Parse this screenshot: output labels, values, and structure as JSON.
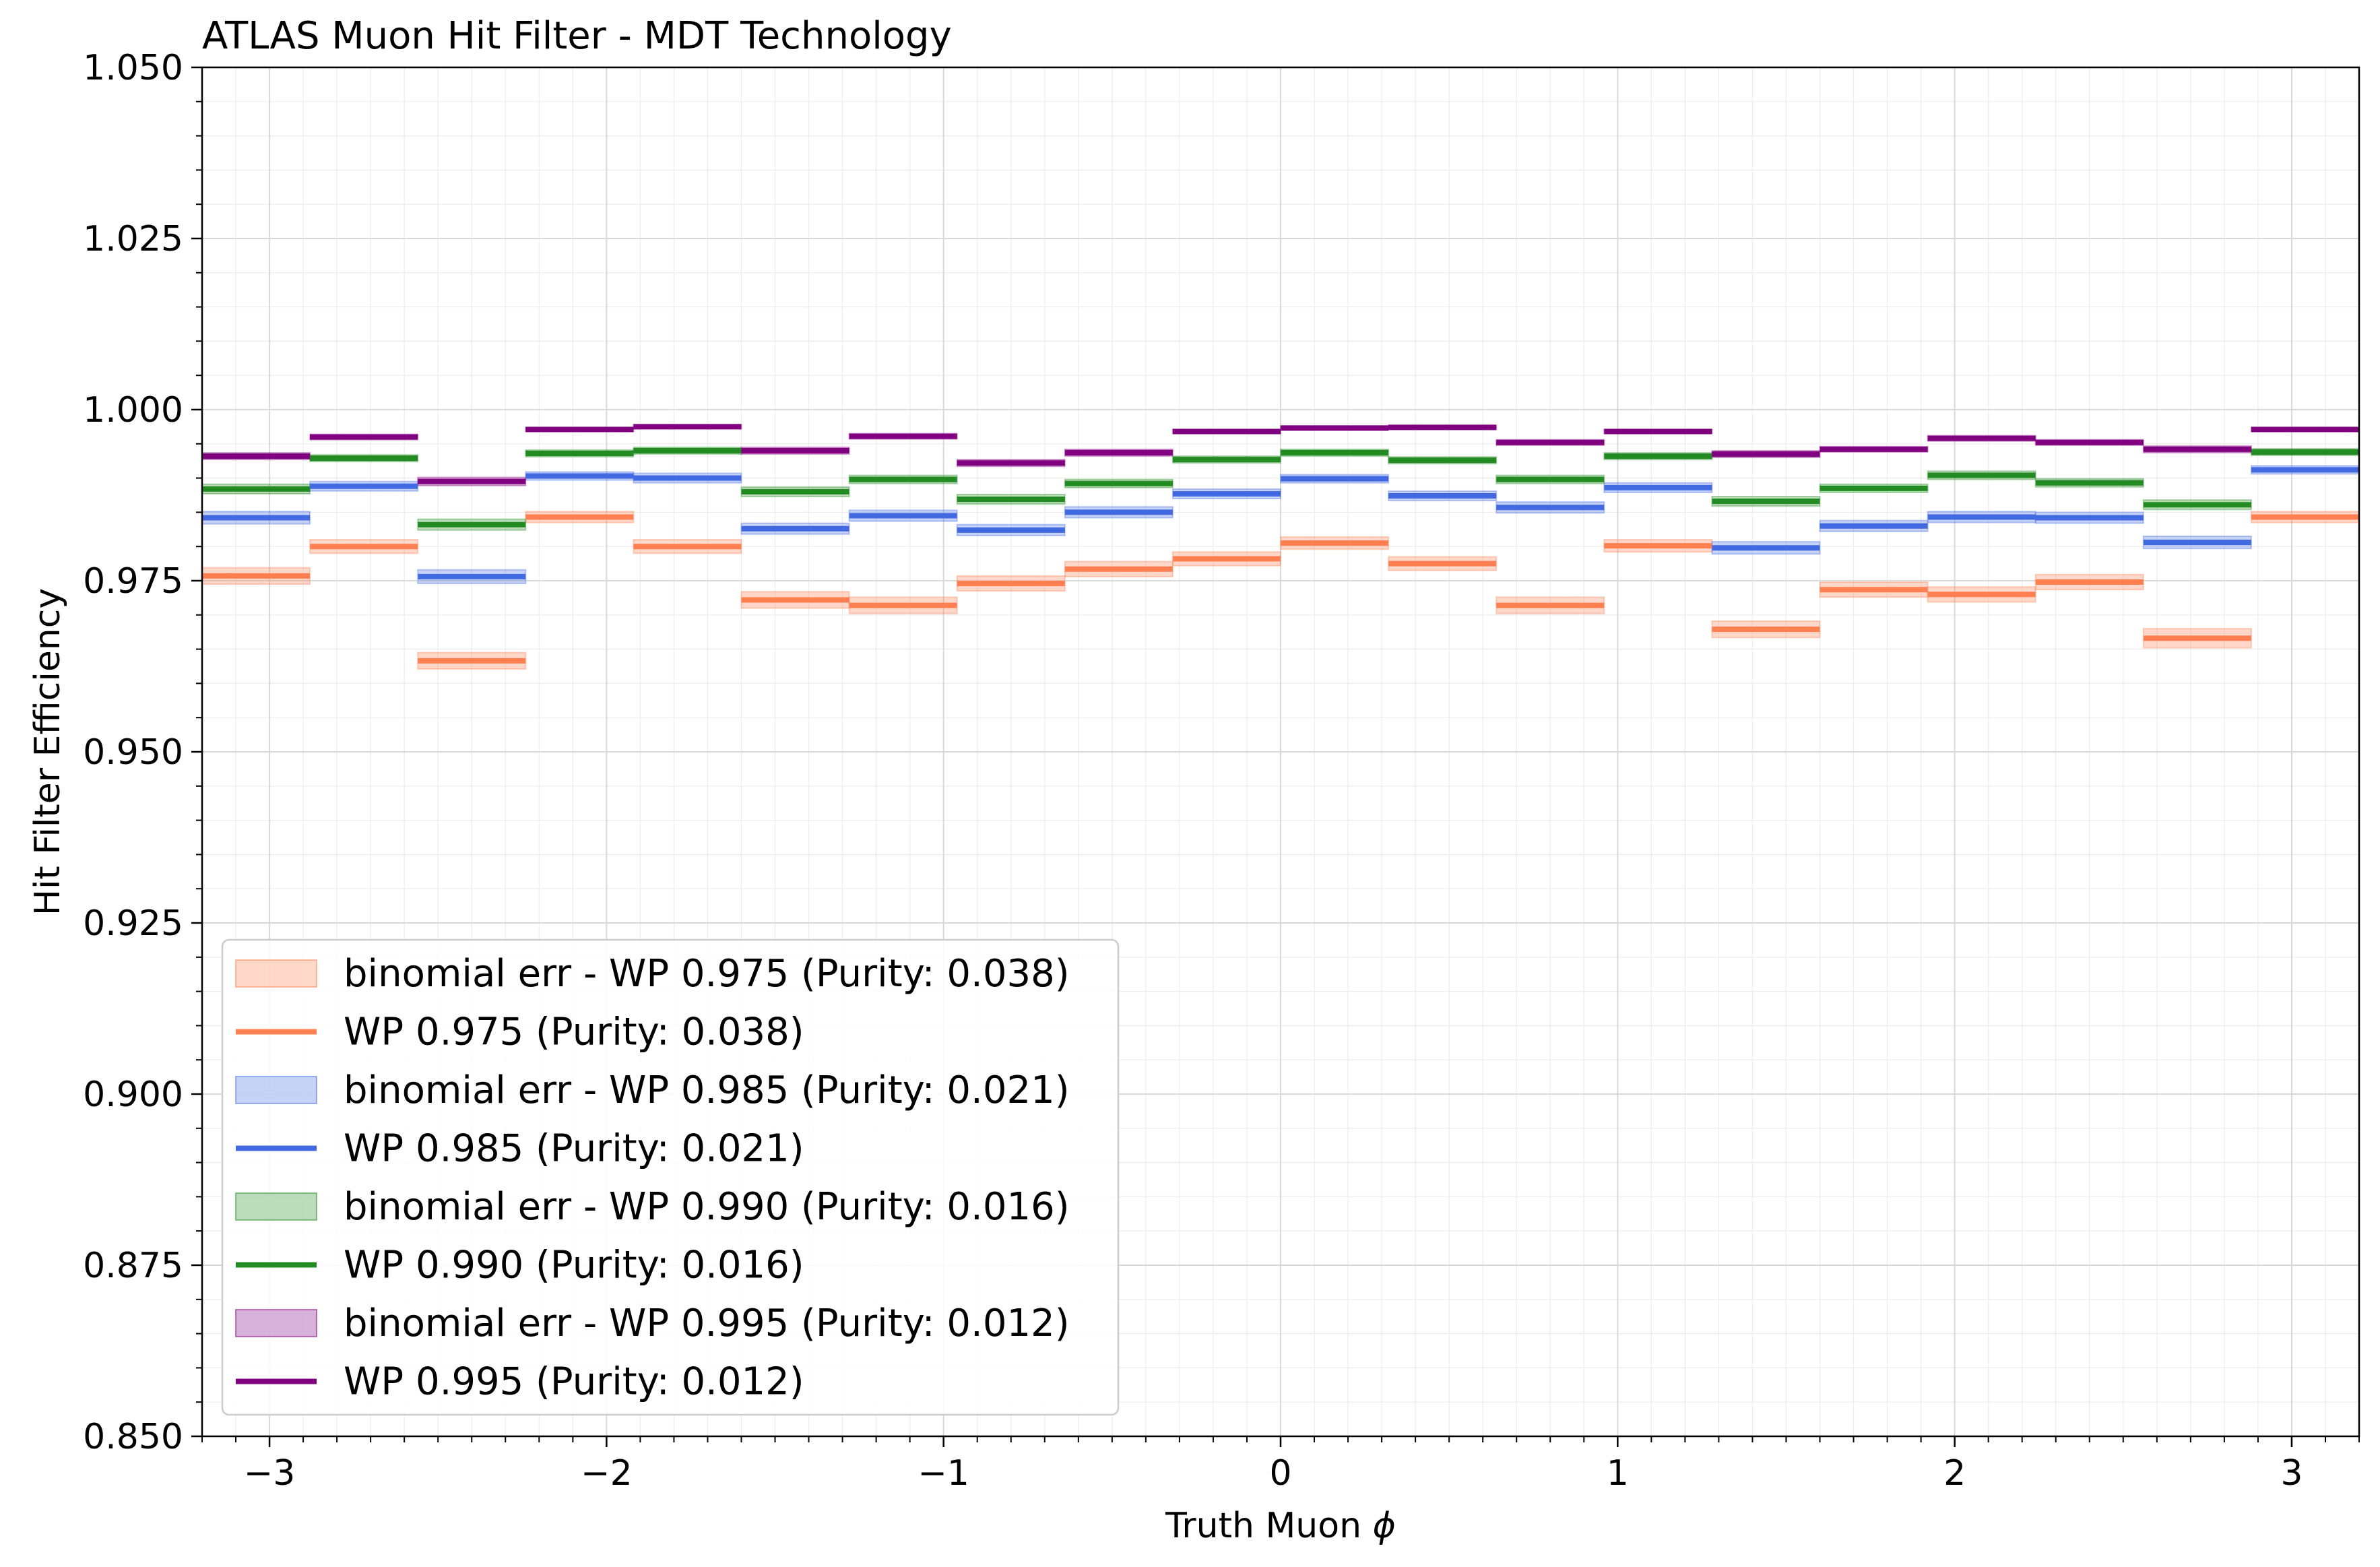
{
  "chart_data": {
    "type": "step",
    "title": "ATLAS Muon Hit Filter - MDT Technology",
    "xlabel": "Truth Muon",
    "xlabel_symbol": "ϕ",
    "ylabel": "Hit Filter Efficiency",
    "xlim": [
      -3.2,
      3.2
    ],
    "ylim": [
      0.85,
      1.05
    ],
    "xticks": [
      -3,
      -2,
      -1,
      0,
      1,
      2,
      3
    ],
    "xtick_labels": [
      "−3",
      "−2",
      "−1",
      "0",
      "1",
      "2",
      "3"
    ],
    "yticks": [
      0.85,
      0.875,
      0.9,
      0.925,
      0.95,
      0.975,
      1.0,
      1.025,
      1.05
    ],
    "ytick_labels": [
      "0.850",
      "0.875",
      "0.900",
      "0.925",
      "0.950",
      "0.975",
      "1.000",
      "1.025",
      "1.050"
    ],
    "grid": true,
    "legend_position": "lower-left",
    "bin_edges": [
      -3.2,
      -2.88,
      -2.56,
      -2.24,
      -1.92,
      -1.6,
      -1.28,
      -0.96,
      -0.64,
      -0.32,
      0.0,
      0.32,
      0.64,
      0.96,
      1.28,
      1.6,
      1.92,
      2.24,
      2.56,
      2.88,
      3.2
    ],
    "series": [
      {
        "name": "WP 0.975 (Purity: 0.038)",
        "band_name": "binomial err - WP 0.975 (Purity: 0.038)",
        "color": "#ff7f50",
        "values": [
          0.9757,
          0.98,
          0.9633,
          0.9843,
          0.98,
          0.9722,
          0.9714,
          0.9746,
          0.9767,
          0.9782,
          0.9805,
          0.9775,
          0.9714,
          0.9801,
          0.9679,
          0.9737,
          0.973,
          0.9748,
          0.9666,
          0.9843
        ],
        "errors": [
          0.0012,
          0.001,
          0.0012,
          0.0008,
          0.001,
          0.0012,
          0.0012,
          0.0011,
          0.0011,
          0.001,
          0.0009,
          0.001,
          0.0012,
          0.0009,
          0.0012,
          0.0011,
          0.0011,
          0.0011,
          0.0014,
          0.0008
        ]
      },
      {
        "name": "WP 0.985 (Purity: 0.021)",
        "band_name": "binomial err - WP 0.985 (Purity: 0.021)",
        "color": "#4169e1",
        "values": [
          0.9842,
          0.9888,
          0.9756,
          0.9903,
          0.99,
          0.9826,
          0.9845,
          0.9824,
          0.985,
          0.9877,
          0.9899,
          0.9874,
          0.9857,
          0.9886,
          0.9798,
          0.983,
          0.9843,
          0.9842,
          0.9806,
          0.9912
        ],
        "errors": [
          0.0009,
          0.0007,
          0.001,
          0.0006,
          0.0007,
          0.0008,
          0.0008,
          0.0008,
          0.0008,
          0.0007,
          0.0006,
          0.0007,
          0.0008,
          0.0007,
          0.0009,
          0.0008,
          0.0008,
          0.0008,
          0.0009,
          0.0006
        ]
      },
      {
        "name": "WP 0.990 (Purity: 0.016)",
        "band_name": "binomial err - WP 0.990 (Purity: 0.016)",
        "color": "#228b22",
        "values": [
          0.9884,
          0.9929,
          0.9832,
          0.9936,
          0.994,
          0.988,
          0.9898,
          0.9869,
          0.9892,
          0.9927,
          0.9937,
          0.9926,
          0.9898,
          0.9932,
          0.9866,
          0.9885,
          0.9904,
          0.9893,
          0.9861,
          0.9938
        ],
        "errors": [
          0.0007,
          0.0005,
          0.0008,
          0.0005,
          0.0005,
          0.0007,
          0.0006,
          0.0007,
          0.0006,
          0.0005,
          0.0005,
          0.0005,
          0.0006,
          0.0005,
          0.0007,
          0.0006,
          0.0006,
          0.0006,
          0.0007,
          0.0005
        ]
      },
      {
        "name": "WP 0.995 (Purity: 0.012)",
        "band_name": "binomial err - WP 0.995 (Purity: 0.012)",
        "color": "#800080",
        "values": [
          0.9932,
          0.996,
          0.9895,
          0.9971,
          0.9975,
          0.994,
          0.9961,
          0.9922,
          0.9937,
          0.9968,
          0.9973,
          0.9974,
          0.9952,
          0.9968,
          0.9935,
          0.9942,
          0.9958,
          0.9952,
          0.9942,
          0.9971
        ],
        "errors": [
          0.0005,
          0.0004,
          0.0006,
          0.0003,
          0.0003,
          0.0005,
          0.0004,
          0.0005,
          0.0005,
          0.0003,
          0.0003,
          0.0003,
          0.0004,
          0.0003,
          0.0005,
          0.0004,
          0.0004,
          0.0004,
          0.0005,
          0.0003
        ]
      }
    ]
  }
}
